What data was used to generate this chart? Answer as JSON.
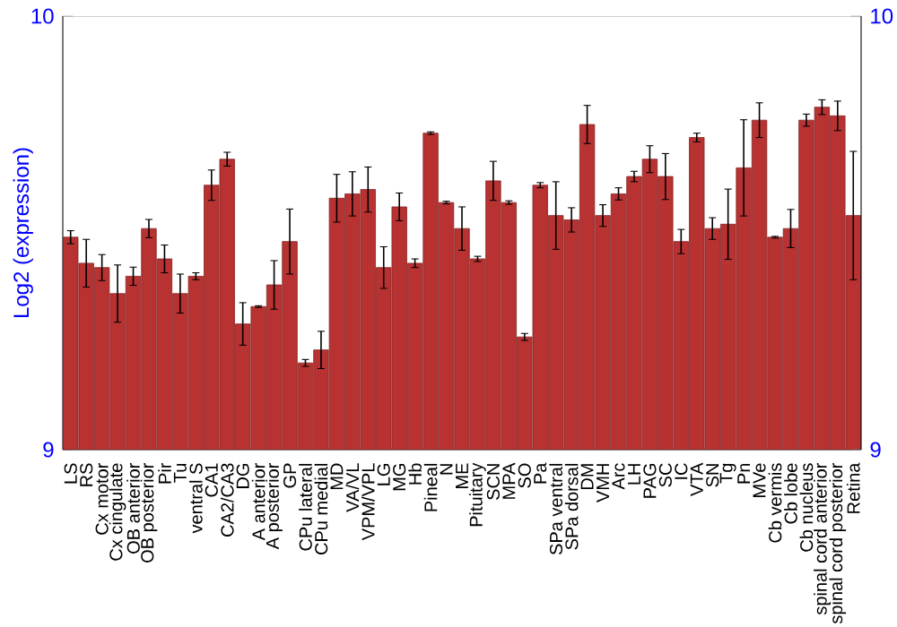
{
  "chart_data": {
    "type": "bar",
    "ylabel": "Log2 (expression)",
    "categories": [
      "LS",
      "RS",
      "Cx motor",
      "Cx cingulate",
      "OB anterior",
      "OB posterior",
      "Pir",
      "Tu",
      "ventral S",
      "CA1",
      "CA2/CA3",
      "DG",
      "A anterior",
      "A posterior",
      "GP",
      "CPu lateral",
      "CPu medial",
      "MD",
      "VA/VL",
      "VPM/VPL",
      "LG",
      "MG",
      "Hb",
      "Pineal",
      "N",
      "ME",
      "Pituitary",
      "SCN",
      "MPA",
      "SO",
      "Pa",
      "SPa ventral",
      "SPa dorsal",
      "DM",
      "VMH",
      "Arc",
      "LH",
      "PAG",
      "SC",
      "IC",
      "VTA",
      "SN",
      "Tg",
      "Pn",
      "MVe",
      "Cb vermis",
      "Cb lobe",
      "Cb nucleus",
      "spinal cord anterior",
      "spinal cord posterior",
      "Retina"
    ],
    "values": [
      9.49,
      9.43,
      9.42,
      9.36,
      9.4,
      9.51,
      9.44,
      9.36,
      9.4,
      9.61,
      9.67,
      9.29,
      9.33,
      9.38,
      9.48,
      9.2,
      9.23,
      9.58,
      9.59,
      9.6,
      9.42,
      9.56,
      9.43,
      9.73,
      9.57,
      9.51,
      9.44,
      9.62,
      9.57,
      9.26,
      9.61,
      9.54,
      9.53,
      9.75,
      9.54,
      9.59,
      9.63,
      9.67,
      9.63,
      9.48,
      9.72,
      9.51,
      9.52,
      9.65,
      9.76,
      9.49,
      9.51,
      9.76,
      9.79,
      9.77,
      9.54
    ],
    "errors": [
      0.015,
      0.055,
      0.03,
      0.066,
      0.021,
      0.021,
      0.032,
      0.045,
      0.008,
      0.035,
      0.016,
      0.049,
      0.002,
      0.056,
      0.075,
      0.008,
      0.043,
      0.055,
      0.051,
      0.052,
      0.048,
      0.032,
      0.01,
      0.003,
      0.003,
      0.05,
      0.006,
      0.045,
      0.004,
      0.008,
      0.006,
      0.078,
      0.028,
      0.044,
      0.025,
      0.014,
      0.012,
      0.031,
      0.053,
      0.028,
      0.01,
      0.025,
      0.081,
      0.111,
      0.04,
      0.002,
      0.044,
      0.014,
      0.017,
      0.034,
      0.148
    ],
    "color": "#b83232",
    "ylim": [
      9,
      10
    ],
    "yticks": [
      9,
      10
    ],
    "y2lim": [
      9,
      10
    ],
    "y2ticks": [
      9,
      10
    ]
  }
}
